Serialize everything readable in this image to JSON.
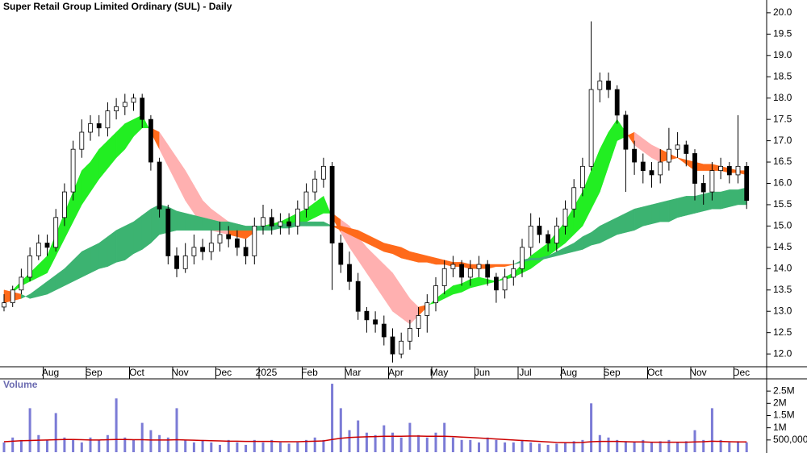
{
  "chart_data": [
    {
      "type": "candlestick",
      "title": "Super Retail Group Limited Ordinary (SUL) - Daily",
      "categories": [
        null,
        null,
        null,
        null,
        null,
        "Aug",
        null,
        null,
        null,
        null,
        "Sep",
        null,
        null,
        null,
        null,
        "Oct",
        null,
        null,
        null,
        null,
        "Nov",
        null,
        null,
        null,
        null,
        "Dec",
        null,
        null,
        null,
        null,
        "2025",
        null,
        null,
        null,
        null,
        "Feb",
        null,
        null,
        null,
        null,
        "Mar",
        null,
        null,
        null,
        null,
        "Apr",
        null,
        null,
        null,
        null,
        "May",
        null,
        null,
        null,
        null,
        "Jun",
        null,
        null,
        null,
        null,
        "Jul",
        null,
        null,
        null,
        null,
        "Aug",
        null,
        null,
        null,
        null,
        "Sep",
        null,
        null,
        null,
        null,
        "Oct",
        null,
        null,
        null,
        null,
        "Nov",
        null,
        null,
        null,
        null,
        "Dec",
        null
      ],
      "open": [
        13.1,
        13.2,
        13.5,
        13.8,
        14.3,
        14.6,
        14.5,
        15.2,
        15.8,
        16.8,
        17.2,
        17.4,
        17.3,
        17.7,
        17.8,
        17.9,
        18.0,
        17.5,
        16.5,
        15.4,
        14.3,
        14.0,
        14.3,
        14.5,
        14.4,
        14.6,
        14.8,
        14.7,
        14.5,
        14.3,
        15.0,
        15.2,
        15.0,
        15.1,
        15.0,
        15.4,
        15.8,
        16.1,
        16.4,
        14.6,
        14.1,
        13.7,
        13.0,
        12.8,
        12.7,
        12.4,
        12.0,
        12.3,
        12.6,
        12.9,
        13.2,
        13.6,
        14.0,
        14.1,
        13.8,
        14.0,
        14.1,
        13.8,
        13.5,
        13.8,
        14.0,
        14.5,
        15.0,
        14.8,
        14.6,
        15.0,
        15.4,
        15.9,
        16.4,
        18.2,
        18.4,
        18.2,
        17.6,
        16.8,
        16.5,
        16.3,
        16.2,
        16.5,
        16.8,
        16.9,
        16.7,
        16.0,
        15.8,
        16.3,
        16.4,
        16.2,
        16.4
      ],
      "high": [
        13.4,
        13.6,
        14.0,
        14.5,
        14.8,
        14.8,
        15.4,
        16.0,
        17.0,
        17.5,
        17.6,
        17.6,
        17.9,
        18.0,
        18.1,
        18.1,
        18.1,
        17.6,
        16.6,
        15.5,
        14.5,
        14.6,
        14.8,
        14.7,
        14.9,
        15.1,
        15.0,
        14.9,
        14.7,
        15.2,
        15.5,
        15.4,
        15.3,
        15.3,
        15.6,
        16.0,
        16.3,
        16.6,
        16.5,
        14.8,
        14.4,
        13.9,
        13.1,
        13.0,
        12.9,
        12.6,
        12.5,
        12.8,
        13.1,
        13.4,
        13.8,
        14.2,
        14.3,
        14.2,
        14.2,
        14.3,
        14.2,
        13.9,
        14.0,
        14.2,
        14.7,
        15.3,
        15.2,
        14.9,
        15.2,
        15.6,
        16.1,
        16.6,
        19.8,
        18.6,
        18.6,
        18.3,
        17.7,
        17.0,
        16.7,
        16.5,
        16.8,
        17.3,
        17.2,
        17.0,
        16.8,
        16.2,
        16.5,
        16.6,
        16.5,
        17.6,
        16.5
      ],
      "low": [
        13.0,
        13.1,
        13.4,
        13.7,
        14.2,
        14.3,
        14.4,
        15.0,
        15.6,
        16.6,
        17.0,
        17.1,
        17.1,
        17.5,
        17.6,
        17.7,
        17.3,
        16.3,
        15.2,
        14.1,
        13.8,
        13.9,
        14.1,
        14.2,
        14.2,
        14.4,
        14.5,
        14.3,
        14.1,
        14.1,
        14.8,
        14.8,
        14.8,
        14.8,
        14.8,
        15.2,
        15.6,
        15.9,
        13.5,
        13.9,
        13.5,
        12.8,
        12.5,
        12.5,
        12.2,
        11.8,
        11.9,
        12.1,
        12.4,
        12.5,
        13.0,
        13.4,
        13.8,
        13.6,
        13.6,
        13.8,
        13.6,
        13.2,
        13.3,
        13.6,
        13.8,
        14.3,
        14.6,
        14.4,
        14.4,
        14.8,
        15.2,
        15.7,
        16.3,
        17.9,
        18.0,
        17.4,
        15.8,
        16.2,
        16.0,
        15.9,
        16.0,
        16.3,
        16.6,
        16.4,
        15.6,
        15.5,
        15.6,
        16.1,
        16.0,
        16.0,
        15.4
      ],
      "close": [
        13.2,
        13.5,
        13.8,
        14.3,
        14.6,
        14.5,
        15.2,
        15.8,
        16.8,
        17.2,
        17.4,
        17.3,
        17.7,
        17.8,
        17.9,
        18.0,
        17.5,
        16.5,
        15.4,
        14.3,
        14.0,
        14.3,
        14.5,
        14.4,
        14.6,
        14.8,
        14.7,
        14.5,
        14.3,
        15.0,
        15.2,
        15.0,
        15.1,
        15.0,
        15.4,
        15.8,
        16.1,
        16.4,
        14.6,
        14.1,
        13.7,
        13.0,
        12.8,
        12.7,
        12.4,
        12.0,
        12.3,
        12.6,
        12.9,
        13.2,
        13.6,
        14.0,
        14.1,
        13.8,
        14.0,
        14.1,
        13.8,
        13.5,
        13.8,
        14.0,
        14.5,
        15.0,
        14.8,
        14.6,
        15.0,
        15.4,
        15.9,
        16.4,
        18.2,
        18.4,
        18.2,
        17.6,
        16.8,
        16.5,
        16.3,
        16.2,
        16.5,
        16.8,
        16.9,
        16.7,
        16.0,
        15.8,
        16.3,
        16.4,
        16.2,
        16.4,
        15.6
      ],
      "up_color": "#ffffff",
      "down_color": "#000000",
      "ribbons": [
        {
          "a": [
            13.3,
            13.5,
            13.7,
            13.9,
            14.1,
            14.3,
            14.8,
            15.3,
            15.8,
            16.3,
            16.5,
            16.8,
            17.0,
            17.2,
            17.4,
            17.5,
            17.6,
            17.2,
            16.8,
            16.4,
            16.0,
            15.6,
            15.3,
            15.0,
            14.9,
            14.85,
            14.8,
            14.75,
            14.7,
            14.85,
            15.0,
            15.05,
            15.1,
            15.2,
            15.3,
            15.4,
            15.55,
            15.7,
            15.2,
            14.85,
            14.5,
            14.2,
            13.9,
            13.6,
            13.3,
            13.0,
            12.85,
            12.7,
            12.9,
            13.1,
            13.3,
            13.45,
            13.6,
            13.65,
            13.75,
            13.8,
            13.75,
            13.7,
            13.8,
            13.9,
            14.1,
            14.3,
            14.45,
            14.6,
            14.85,
            15.1,
            15.45,
            15.8,
            16.3,
            16.8,
            17.2,
            17.5,
            17.2,
            16.9,
            16.75,
            16.6,
            16.5,
            16.55,
            16.6,
            16.45,
            16.3,
            16.3,
            16.3,
            16.3,
            16.25,
            16.25,
            16.2
          ],
          "b": [
            13.3,
            13.45,
            13.6,
            13.7,
            13.8,
            13.9,
            14.3,
            14.7,
            15.1,
            15.5,
            15.8,
            16.1,
            16.35,
            16.6,
            16.8,
            17.1,
            17.3,
            17.3,
            17.2,
            16.9,
            16.6,
            16.3,
            15.95,
            15.6,
            15.4,
            15.25,
            15.1,
            15.0,
            14.9,
            14.9,
            14.9,
            14.95,
            15.0,
            15.05,
            15.1,
            15.1,
            15.2,
            15.3,
            15.3,
            15.15,
            15.0,
            14.75,
            14.5,
            14.3,
            14.1,
            13.9,
            13.6,
            13.3,
            13.1,
            13.15,
            13.2,
            13.3,
            13.4,
            13.45,
            13.55,
            13.6,
            13.65,
            13.7,
            13.75,
            13.8,
            13.9,
            14.0,
            14.15,
            14.3,
            14.45,
            14.6,
            14.8,
            15.0,
            15.4,
            15.8,
            16.4,
            17.0,
            17.1,
            17.2,
            17.05,
            16.9,
            16.8,
            16.7,
            16.6,
            16.55,
            16.5,
            16.45,
            16.45,
            16.4,
            16.35,
            16.3,
            16.3
          ],
          "up_color": "#22ee22",
          "down_color": "#ff6a1a",
          "deep_down_color": "#ffb0b0"
        },
        {
          "a": [
            13.2,
            13.25,
            13.3,
            13.4,
            13.55,
            13.7,
            13.85,
            14.0,
            14.2,
            14.4,
            14.5,
            14.6,
            14.75,
            14.9,
            15.0,
            15.1,
            15.25,
            15.4,
            15.5,
            15.45,
            15.35,
            15.3,
            15.25,
            15.2,
            15.15,
            15.1,
            15.1,
            15.05,
            15.0,
            15.0,
            15.0,
            15.0,
            15.05,
            15.05,
            15.1,
            15.1,
            15.1,
            15.1,
            15.0,
            14.9,
            14.8,
            14.7,
            14.6,
            14.5,
            14.4,
            14.35,
            14.25,
            14.2,
            14.15,
            14.15,
            14.1,
            14.1,
            14.05,
            14.05,
            14.0,
            14.0,
            14.0,
            14.05,
            14.05,
            14.1,
            14.2,
            14.25,
            14.25,
            14.3,
            14.4,
            14.5,
            14.6,
            14.75,
            14.85,
            15.0,
            15.1,
            15.2,
            15.3,
            15.4,
            15.45,
            15.5,
            15.55,
            15.6,
            15.65,
            15.7,
            15.7,
            15.75,
            15.8,
            15.8,
            15.85,
            15.85,
            15.9
          ],
          "b": [
            13.5,
            13.45,
            13.4,
            13.3,
            13.35,
            13.4,
            13.5,
            13.6,
            13.7,
            13.8,
            13.9,
            14.0,
            14.05,
            14.15,
            14.2,
            14.35,
            14.45,
            14.6,
            14.8,
            14.85,
            14.9,
            14.9,
            14.9,
            14.9,
            14.9,
            14.9,
            14.9,
            14.9,
            14.9,
            14.9,
            14.9,
            14.9,
            14.95,
            14.95,
            15.0,
            15.0,
            15.0,
            15.0,
            15.0,
            15.0,
            14.95,
            14.9,
            14.8,
            14.7,
            14.6,
            14.55,
            14.5,
            14.4,
            14.35,
            14.3,
            14.25,
            14.2,
            14.15,
            14.15,
            14.1,
            14.1,
            14.1,
            14.1,
            14.1,
            14.1,
            14.15,
            14.2,
            14.2,
            14.25,
            14.3,
            14.35,
            14.4,
            14.45,
            14.55,
            14.6,
            14.7,
            14.8,
            14.85,
            14.9,
            15.0,
            15.05,
            15.1,
            15.1,
            15.2,
            15.25,
            15.3,
            15.35,
            15.4,
            15.4,
            15.45,
            15.5,
            15.5
          ],
          "up_color": "#3cb371",
          "down_color": "#ff6a1a",
          "deep_down_color": "#f08080"
        }
      ],
      "ylim": [
        11.7,
        20.3
      ],
      "yticks": [
        {
          "value": 12,
          "label": "12.0"
        },
        {
          "value": 12.5,
          "label": "12.5"
        },
        {
          "value": 13,
          "label": "13.0"
        },
        {
          "value": 13.5,
          "label": "13.5"
        },
        {
          "value": 14,
          "label": "14.0"
        },
        {
          "value": 14.5,
          "label": "14.5"
        },
        {
          "value": 15,
          "label": "15.0"
        },
        {
          "value": 15.5,
          "label": "15.5"
        },
        {
          "value": 16,
          "label": "16.0"
        },
        {
          "value": 16.5,
          "label": "16.5"
        },
        {
          "value": 17,
          "label": "17.0"
        },
        {
          "value": 17.5,
          "label": "17.5"
        },
        {
          "value": 18,
          "label": "18.0"
        },
        {
          "value": 18.5,
          "label": "18.5"
        },
        {
          "value": 19,
          "label": "19.0"
        },
        {
          "value": 19.5,
          "label": "19.5"
        },
        {
          "value": 20,
          "label": "20.0"
        }
      ]
    },
    {
      "type": "bar",
      "title": "Volume",
      "color": "#7b7bd6",
      "values": [
        400000,
        600000,
        500000,
        1800000,
        700000,
        500000,
        1600000,
        600000,
        500000,
        400000,
        600000,
        500000,
        700000,
        2200000,
        600000,
        500000,
        1200000,
        900000,
        700000,
        600000,
        1800000,
        500000,
        400000,
        500000,
        400000,
        300000,
        500000,
        400000,
        300000,
        500000,
        400000,
        500000,
        400000,
        350000,
        400000,
        500000,
        600000,
        500000,
        2800000,
        1800000,
        900000,
        1300000,
        800000,
        700000,
        1100000,
        800000,
        600000,
        1200000,
        700000,
        600000,
        800000,
        1200000,
        600000,
        500000,
        500000,
        400000,
        600000,
        500000,
        400000,
        400000,
        500000,
        400000,
        350000,
        300000,
        350000,
        400000,
        450000,
        500000,
        2000000,
        700000,
        600000,
        500000,
        450000,
        400000,
        500000,
        400000,
        450000,
        500000,
        400000,
        450000,
        900000,
        500000,
        1800000,
        500000,
        400000,
        450000,
        400000
      ],
      "ma": {
        "color": "#cc0000",
        "values": [
          430000,
          450000,
          470000,
          480000,
          490000,
          500000,
          510000,
          520000,
          520000,
          510000,
          500000,
          500000,
          510000,
          520000,
          520000,
          510000,
          510000,
          500000,
          500000,
          500000,
          510000,
          500000,
          490000,
          480000,
          470000,
          460000,
          450000,
          450000,
          440000,
          440000,
          440000,
          440000,
          430000,
          430000,
          430000,
          440000,
          450000,
          460000,
          520000,
          570000,
          600000,
          620000,
          630000,
          640000,
          650000,
          650000,
          650000,
          660000,
          660000,
          650000,
          650000,
          650000,
          640000,
          620000,
          600000,
          580000,
          560000,
          540000,
          520000,
          500000,
          480000,
          460000,
          440000,
          420000,
          400000,
          390000,
          390000,
          400000,
          430000,
          440000,
          440000,
          440000,
          430000,
          420000,
          420000,
          410000,
          410000,
          410000,
          410000,
          410000,
          420000,
          430000,
          450000,
          440000,
          430000,
          420000,
          420000
        ]
      },
      "ylim": [
        0,
        3000000
      ],
      "yticks": [
        {
          "value": 500000,
          "label": "500,000"
        },
        {
          "value": 1000000,
          "label": "1M"
        },
        {
          "value": 1500000,
          "label": "1.5M"
        },
        {
          "value": 2000000,
          "label": "2M"
        },
        {
          "value": 2500000,
          "label": "2.5M"
        }
      ]
    }
  ]
}
